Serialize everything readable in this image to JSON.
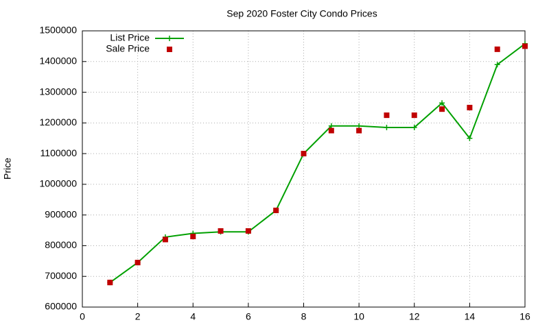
{
  "chart_data": {
    "type": "line",
    "title": "Sep 2020 Foster City Condo Prices",
    "ylabel": "Price",
    "x": [
      1,
      2,
      3,
      4,
      5,
      6,
      7,
      8,
      9,
      10,
      11,
      12,
      13,
      14,
      15,
      16
    ],
    "series": [
      {
        "name": "List Price",
        "color": "#00a000",
        "marker": "plus",
        "line": true,
        "values": [
          680000,
          745000,
          828000,
          840000,
          845000,
          845000,
          915000,
          1100000,
          1190000,
          1190000,
          1185000,
          1185000,
          1265000,
          1150000,
          1390000,
          1458000
        ]
      },
      {
        "name": "Sale Price",
        "color": "#c00000",
        "marker": "square",
        "line": false,
        "values": [
          680000,
          745000,
          820000,
          830000,
          848000,
          848000,
          915000,
          1100000,
          1175000,
          1175000,
          1225000,
          1225000,
          1245000,
          1250000,
          1440000,
          1450000
        ]
      }
    ],
    "xlim": [
      0,
      16
    ],
    "xticks": [
      0,
      2,
      4,
      6,
      8,
      10,
      12,
      14,
      16
    ],
    "ylim": [
      600000,
      1500000
    ],
    "yticks": [
      600000,
      700000,
      800000,
      900000,
      1000000,
      1100000,
      1200000,
      1300000,
      1400000,
      1500000
    ],
    "grid": true,
    "legend": "top-left"
  }
}
